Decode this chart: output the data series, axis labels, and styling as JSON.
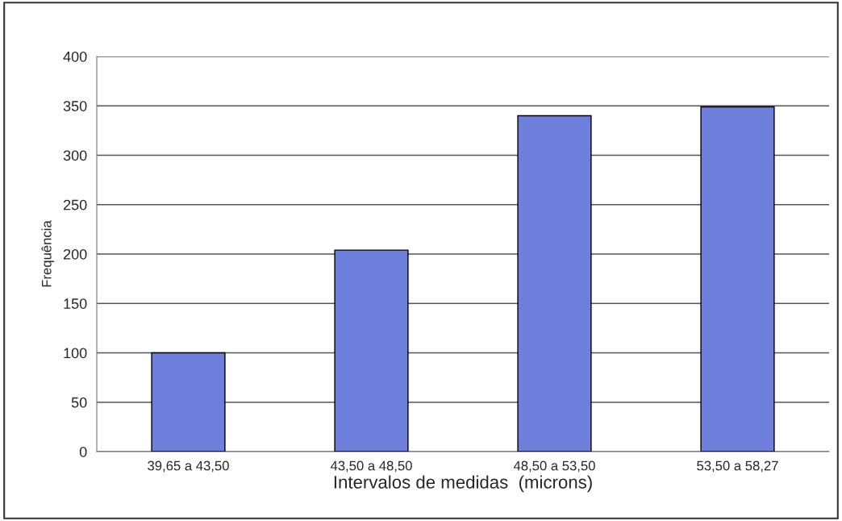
{
  "chart_data": {
    "type": "bar",
    "xlabel": "Intervalos de medidas  (microns)",
    "ylabel": "Frequência",
    "categories": [
      "39,65 a 43,50",
      "43,50 a 48,50",
      "48,50 a 53,50",
      "53,50 a 58,27"
    ],
    "values": [
      100,
      204,
      340,
      349
    ],
    "color": "#6f80dc",
    "ylim": [
      0,
      400
    ],
    "yticks": [
      0,
      50,
      100,
      150,
      200,
      250,
      300,
      350,
      400
    ],
    "grid": "y",
    "legend": false
  }
}
